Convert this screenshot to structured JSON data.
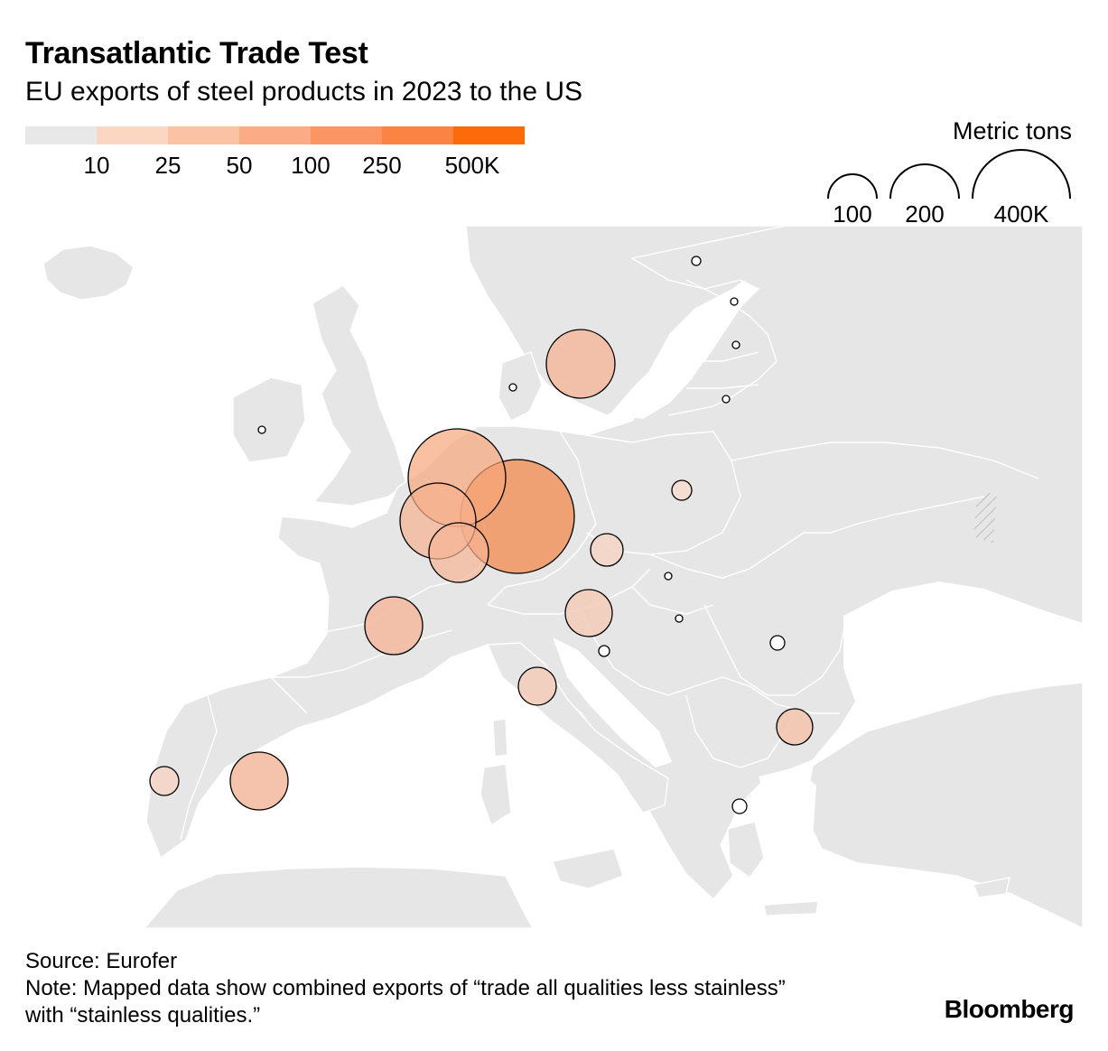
{
  "title": "Transatlantic Trade Test",
  "subtitle": "EU exports of steel products in 2023 to the US",
  "color_scale": {
    "colors": [
      "#e8e8e8",
      "#fbd6c3",
      "#fbc2a3",
      "#fbac84",
      "#fb9563",
      "#fb8443",
      "#fb6b0a"
    ],
    "ticks": [
      "10",
      "25",
      "50",
      "100",
      "250",
      "500K"
    ]
  },
  "size_legend": {
    "title": "Metric tons",
    "items": [
      "100",
      "200",
      "400K"
    ]
  },
  "map": {
    "land_color": "#e6e6e6",
    "border_color": "#ffffff",
    "bubble_stroke": "#000000",
    "bubbles": [
      {
        "location": "Germany",
        "fill": "#f39058",
        "opacity": 0.8
      },
      {
        "location": "Netherlands",
        "fill": "#f6a57a",
        "opacity": 0.7
      },
      {
        "location": "Belgium",
        "fill": "#f6b08e",
        "opacity": 0.7
      },
      {
        "location": "Luxembourg",
        "fill": "#f6b394",
        "opacity": 0.7
      },
      {
        "location": "Sweden",
        "fill": "#f3b99d",
        "opacity": 0.85
      },
      {
        "location": "France",
        "fill": "#f3b99d",
        "opacity": 0.85
      },
      {
        "location": "Spain",
        "fill": "#f3b99d",
        "opacity": 0.85
      },
      {
        "location": "Austria",
        "fill": "#f3cbb8",
        "opacity": 0.85
      },
      {
        "location": "Italy",
        "fill": "#f3cbb8",
        "opacity": 0.85
      },
      {
        "location": "Czechia",
        "fill": "#f3d3c4",
        "opacity": 0.85
      },
      {
        "location": "Bulgaria",
        "fill": "#f3c3ab",
        "opacity": 0.85
      },
      {
        "location": "Portugal",
        "fill": "#f3d3c4",
        "opacity": 0.85
      },
      {
        "location": "Poland",
        "fill": "#f5ddd0",
        "opacity": 0.9
      },
      {
        "location": "Romania",
        "fill": "#ffffff",
        "opacity": 1
      },
      {
        "location": "Greece",
        "fill": "#ffffff",
        "opacity": 1
      },
      {
        "location": "Slovenia",
        "fill": "#ffffff",
        "opacity": 1
      },
      {
        "location": "Ireland",
        "fill": "#ffffff",
        "opacity": 1
      },
      {
        "location": "Denmark",
        "fill": "#ffffff",
        "opacity": 1
      },
      {
        "location": "Finland",
        "fill": "#ffffff",
        "opacity": 1
      },
      {
        "location": "Estonia",
        "fill": "#ffffff",
        "opacity": 1
      },
      {
        "location": "Latvia",
        "fill": "#ffffff",
        "opacity": 1
      },
      {
        "location": "Lithuania",
        "fill": "#ffffff",
        "opacity": 1
      },
      {
        "location": "Slovakia",
        "fill": "#ffffff",
        "opacity": 1
      },
      {
        "location": "Hungary",
        "fill": "#ffffff",
        "opacity": 1
      }
    ]
  },
  "footer": {
    "source": "Source: Eurofer",
    "note": "Note: Mapped data show combined exports of “trade all qualities less stainless” with “stainless qualities.”"
  },
  "brand": "Bloomberg"
}
